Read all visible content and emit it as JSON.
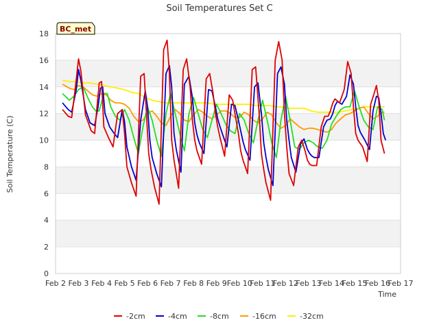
{
  "chart_data": {
    "type": "line",
    "title": "Soil Temperatures Set C",
    "xlabel": "Time",
    "ylabel": "Soil Temperature (C)",
    "station_label": "BC_met",
    "xlim": [
      2,
      17
    ],
    "ylim": [
      0,
      18
    ],
    "yticks": [
      0,
      2,
      4,
      6,
      8,
      10,
      12,
      14,
      16,
      18
    ],
    "xticks": [
      {
        "value": 2,
        "label": "Feb 2"
      },
      {
        "value": 3,
        "label": "Feb 3"
      },
      {
        "value": 4,
        "label": "Feb 4"
      },
      {
        "value": 5,
        "label": "Feb 5"
      },
      {
        "value": 6,
        "label": "Feb 6"
      },
      {
        "value": 7,
        "label": "Feb 7"
      },
      {
        "value": 8,
        "label": "Feb 8"
      },
      {
        "value": 9,
        "label": "Feb 9"
      },
      {
        "value": 10,
        "label": "Feb 10"
      },
      {
        "value": 11,
        "label": "Feb 11"
      },
      {
        "value": 12,
        "label": "Feb 12"
      },
      {
        "value": 13,
        "label": "Feb 13"
      },
      {
        "value": 14,
        "label": "Feb 14"
      },
      {
        "value": 15,
        "label": "Feb 15"
      },
      {
        "value": 16,
        "label": "Feb 16"
      },
      {
        "value": 17,
        "label": "Feb 17"
      }
    ],
    "grid": "alternating horizontal bands",
    "legend_position": "bottom",
    "series": [
      {
        "name": "-2cm",
        "color": "#dd0000",
        "x": [
          2.3,
          2.55,
          2.7,
          2.85,
          3.0,
          3.1,
          3.3,
          3.55,
          3.7,
          3.8,
          3.9,
          4.0,
          4.1,
          4.3,
          4.5,
          4.7,
          4.9,
          5.0,
          5.1,
          5.3,
          5.5,
          5.7,
          5.85,
          5.95,
          6.05,
          6.15,
          6.3,
          6.5,
          6.7,
          6.85,
          6.95,
          7.05,
          7.15,
          7.35,
          7.55,
          7.7,
          7.85,
          7.95,
          8.05,
          8.15,
          8.35,
          8.55,
          8.7,
          8.85,
          8.95,
          9.05,
          9.15,
          9.35,
          9.55,
          9.7,
          9.85,
          9.95,
          10.05,
          10.15,
          10.35,
          10.55,
          10.7,
          10.85,
          10.95,
          11.05,
          11.15,
          11.35,
          11.55,
          11.7,
          11.85,
          11.95,
          12.05,
          12.15,
          12.35,
          12.55,
          12.7,
          12.85,
          12.95,
          13.05,
          13.15,
          13.35,
          13.55,
          13.7,
          13.85,
          13.95,
          14.05,
          14.15,
          14.35,
          14.55,
          14.7,
          14.85,
          14.95,
          15.05,
          15.15,
          15.35,
          15.55,
          15.7,
          15.85,
          15.95,
          16.05,
          16.15,
          16.3
        ],
        "y": [
          12.3,
          11.8,
          11.7,
          13.8,
          16.1,
          15.2,
          11.9,
          10.7,
          10.5,
          12.5,
          14.3,
          14.4,
          11.0,
          10.2,
          9.5,
          12.0,
          12.3,
          10.5,
          8.0,
          6.8,
          5.8,
          14.8,
          15.0,
          12.0,
          9.0,
          7.8,
          6.5,
          5.2,
          16.8,
          17.5,
          15.0,
          10.0,
          8.5,
          6.4,
          15.3,
          16.1,
          14.0,
          11.5,
          10.0,
          9.2,
          8.2,
          14.6,
          15.0,
          13.5,
          12.0,
          11.0,
          10.2,
          8.8,
          13.4,
          13.0,
          11.5,
          10.5,
          9.2,
          8.5,
          7.5,
          15.3,
          15.5,
          12.0,
          9.0,
          7.8,
          6.8,
          5.5,
          16.0,
          17.4,
          16.0,
          12.0,
          9.5,
          7.5,
          6.6,
          9.5,
          10.0,
          9.2,
          8.5,
          8.2,
          8.1,
          8.1,
          11.0,
          11.8,
          11.8,
          12.2,
          12.8,
          13.1,
          12.8,
          13.8,
          15.9,
          15.0,
          12.5,
          10.5,
          10.0,
          9.5,
          8.4,
          12.7,
          13.5,
          14.1,
          13.0,
          10.0,
          9.0
        ]
      },
      {
        "name": "-4cm",
        "color": "#0000cc",
        "x": [
          2.3,
          2.55,
          2.7,
          2.9,
          3.0,
          3.1,
          3.3,
          3.5,
          3.7,
          3.85,
          3.95,
          4.05,
          4.15,
          4.35,
          4.55,
          4.7,
          4.9,
          5.0,
          5.1,
          5.3,
          5.5,
          5.7,
          5.9,
          6.0,
          6.1,
          6.2,
          6.4,
          6.6,
          6.8,
          6.95,
          7.05,
          7.15,
          7.25,
          7.45,
          7.6,
          7.8,
          7.95,
          8.05,
          8.15,
          8.25,
          8.45,
          8.65,
          8.8,
          8.95,
          9.05,
          9.15,
          9.25,
          9.45,
          9.65,
          9.8,
          9.95,
          10.05,
          10.15,
          10.25,
          10.45,
          10.65,
          10.8,
          10.95,
          11.05,
          11.15,
          11.25,
          11.45,
          11.65,
          11.8,
          11.95,
          12.05,
          12.15,
          12.25,
          12.45,
          12.65,
          12.8,
          12.95,
          13.05,
          13.15,
          13.25,
          13.45,
          13.65,
          13.8,
          13.95,
          14.05,
          14.15,
          14.25,
          14.45,
          14.65,
          14.8,
          14.95,
          15.05,
          15.15,
          15.25,
          15.45,
          15.65,
          15.8,
          15.95,
          16.05,
          16.15,
          16.25,
          16.35
        ],
        "y": [
          12.8,
          12.3,
          12.1,
          13.8,
          15.3,
          14.5,
          12.3,
          11.3,
          11.1,
          12.5,
          13.9,
          14.0,
          12.0,
          11.0,
          10.5,
          10.2,
          12.3,
          11.4,
          9.5,
          8.0,
          7.0,
          11.5,
          13.7,
          12.5,
          10.0,
          8.7,
          7.5,
          6.5,
          15.0,
          15.6,
          14.0,
          10.5,
          9.3,
          7.6,
          14.2,
          14.8,
          13.2,
          11.3,
          10.4,
          9.8,
          9.0,
          13.8,
          13.7,
          12.5,
          11.6,
          11.0,
          10.5,
          9.5,
          12.7,
          12.6,
          11.5,
          10.7,
          9.9,
          9.3,
          8.5,
          14.0,
          14.3,
          12.0,
          9.8,
          8.7,
          7.8,
          6.6,
          15.0,
          15.5,
          14.2,
          11.5,
          10.0,
          8.7,
          7.6,
          9.7,
          10.1,
          9.3,
          9.0,
          8.8,
          8.7,
          8.7,
          11.0,
          11.5,
          11.6,
          12.0,
          12.6,
          12.9,
          12.7,
          13.3,
          14.9,
          14.2,
          12.5,
          11.1,
          10.6,
          10.0,
          9.3,
          12.2,
          13.3,
          13.2,
          12.0,
          10.5,
          10.0
        ]
      },
      {
        "name": "-8cm",
        "color": "#22dd22",
        "x": [
          2.3,
          2.6,
          2.8,
          3.0,
          3.2,
          3.4,
          3.6,
          3.75,
          3.9,
          4.1,
          4.25,
          4.4,
          4.6,
          4.8,
          5.0,
          5.2,
          5.4,
          5.6,
          5.8,
          6.0,
          6.2,
          6.4,
          6.6,
          6.8,
          7.0,
          7.2,
          7.4,
          7.6,
          7.8,
          8.0,
          8.2,
          8.4,
          8.6,
          8.8,
          9.0,
          9.2,
          9.4,
          9.6,
          9.8,
          10.0,
          10.2,
          10.4,
          10.6,
          10.8,
          11.0,
          11.2,
          11.4,
          11.6,
          11.8,
          12.0,
          12.2,
          12.4,
          12.6,
          12.8,
          13.0,
          13.2,
          13.4,
          13.6,
          13.8,
          14.0,
          14.2,
          14.4,
          14.6,
          14.8,
          15.0,
          15.2,
          15.4,
          15.6,
          15.8,
          16.0,
          16.2,
          16.3
        ],
        "y": [
          13.5,
          13.0,
          13.3,
          13.8,
          14.0,
          13.2,
          12.5,
          12.2,
          12.2,
          13.5,
          13.5,
          12.5,
          11.8,
          11.5,
          12.3,
          11.5,
          10.2,
          9.0,
          11.0,
          12.5,
          11.5,
          10.0,
          8.8,
          12.0,
          13.5,
          12.0,
          10.5,
          9.2,
          12.0,
          13.2,
          12.0,
          10.8,
          10.2,
          11.5,
          12.7,
          12.0,
          11.2,
          10.7,
          10.5,
          12.0,
          11.5,
          10.5,
          9.8,
          11.5,
          13.0,
          11.5,
          9.8,
          8.7,
          11.5,
          13.3,
          11.5,
          9.5,
          9.3,
          9.8,
          10.0,
          9.8,
          9.5,
          9.4,
          10.0,
          11.2,
          11.8,
          12.3,
          12.5,
          12.5,
          13.7,
          12.5,
          11.5,
          11.0,
          10.8,
          12.5,
          12.3,
          11.5
        ]
      },
      {
        "name": "-16cm",
        "color": "#ff9900",
        "x": [
          2.3,
          2.6,
          2.8,
          3.0,
          3.2,
          3.4,
          3.6,
          3.8,
          4.0,
          4.2,
          4.4,
          4.6,
          4.8,
          5.0,
          5.2,
          5.4,
          5.6,
          5.8,
          6.0,
          6.2,
          6.4,
          6.6,
          6.8,
          7.0,
          7.2,
          7.4,
          7.6,
          7.8,
          8.0,
          8.2,
          8.4,
          8.6,
          8.8,
          9.0,
          9.2,
          9.4,
          9.6,
          9.8,
          10.0,
          10.2,
          10.4,
          10.6,
          10.8,
          11.0,
          11.2,
          11.4,
          11.6,
          11.8,
          12.0,
          12.2,
          12.4,
          12.6,
          12.8,
          13.0,
          13.2,
          13.4,
          13.6,
          13.8,
          14.0,
          14.2,
          14.4,
          14.6,
          14.8,
          15.0,
          15.2,
          15.4,
          15.6,
          15.8,
          16.0,
          16.2,
          16.3
        ],
        "y": [
          14.2,
          13.9,
          13.8,
          14.1,
          14.0,
          13.7,
          13.4,
          13.3,
          13.5,
          13.4,
          13.0,
          12.8,
          12.8,
          12.7,
          12.4,
          11.8,
          11.4,
          11.5,
          12.0,
          12.2,
          11.8,
          11.3,
          11.1,
          11.8,
          12.3,
          12.0,
          11.5,
          11.4,
          11.9,
          12.3,
          12.1,
          11.8,
          11.6,
          11.9,
          12.2,
          12.2,
          12.0,
          11.7,
          11.7,
          12.1,
          11.9,
          11.5,
          11.3,
          11.6,
          12.1,
          11.9,
          11.3,
          10.9,
          11.1,
          11.6,
          11.3,
          11.0,
          10.8,
          10.9,
          10.9,
          10.8,
          10.7,
          10.6,
          10.8,
          11.3,
          11.6,
          11.9,
          12.0,
          12.2,
          12.4,
          12.5,
          12.0,
          11.6,
          11.8,
          12.1,
          12.1
        ]
      },
      {
        "name": "-32cm",
        "color": "#ffee00",
        "x": [
          2.3,
          2.6,
          2.9,
          3.2,
          3.5,
          3.8,
          4.1,
          4.4,
          4.7,
          5.0,
          5.3,
          5.6,
          5.9,
          6.2,
          6.5,
          6.8,
          7.1,
          7.4,
          7.7,
          8.0,
          8.3,
          8.6,
          8.9,
          9.2,
          9.5,
          9.8,
          10.1,
          10.4,
          10.7,
          11.0,
          11.3,
          11.6,
          11.9,
          12.2,
          12.5,
          12.8,
          13.1,
          13.4,
          13.7,
          14.0,
          14.3,
          14.6,
          14.9,
          15.2,
          15.5,
          15.8,
          16.1,
          16.3
        ],
        "y": [
          14.5,
          14.4,
          14.4,
          14.3,
          14.3,
          14.2,
          14.1,
          14.0,
          13.9,
          13.8,
          13.6,
          13.5,
          13.2,
          13.0,
          12.9,
          12.8,
          12.8,
          12.8,
          12.8,
          12.8,
          12.8,
          12.8,
          12.7,
          12.7,
          12.7,
          12.7,
          12.7,
          12.7,
          12.6,
          12.6,
          12.6,
          12.5,
          12.5,
          12.4,
          12.4,
          12.4,
          12.2,
          12.1,
          12.1,
          12.1,
          12.1,
          12.2,
          12.3,
          12.4,
          12.5,
          12.5,
          12.5,
          12.5
        ]
      }
    ]
  }
}
